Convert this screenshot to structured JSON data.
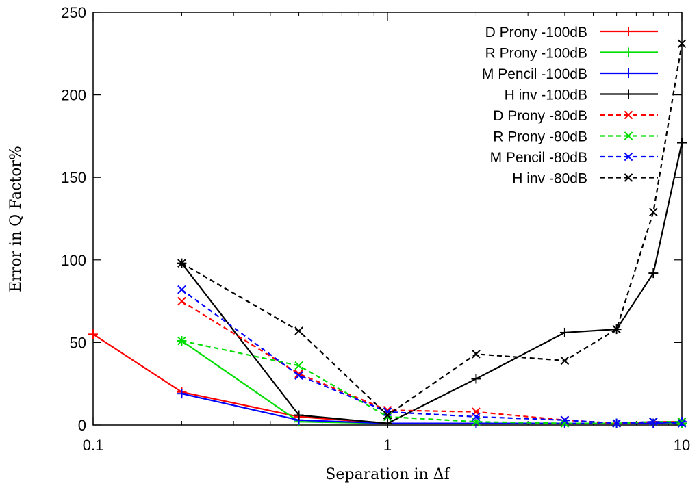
{
  "chart_data": {
    "type": "line",
    "xlabel": "Separation in Δf",
    "ylabel": "Error in Q Factor%",
    "xscale": "log",
    "xlim": [
      0.1,
      10
    ],
    "ylim": [
      0,
      250
    ],
    "xticks": [
      0.1,
      1,
      10
    ],
    "xtick_labels": [
      "0.1",
      "1",
      "10"
    ],
    "yticks": [
      0,
      50,
      100,
      150,
      200,
      250
    ],
    "ytick_labels": [
      "0",
      "50",
      "100",
      "150",
      "200",
      "250"
    ],
    "grid": false,
    "legend_position": "top-right",
    "series": [
      {
        "name": "D Prony -100dB",
        "color": "#ff0000",
        "dash": "solid",
        "marker": "plus",
        "x": [
          0.1,
          0.2,
          0.5,
          1,
          2,
          4,
          6,
          8,
          10
        ],
        "y": [
          55,
          20,
          5,
          1,
          1,
          1,
          1,
          1,
          1
        ]
      },
      {
        "name": "R Prony -100dB",
        "color": "#00dd00",
        "dash": "solid",
        "marker": "plus",
        "x": [
          0.2,
          0.5,
          1,
          2,
          4,
          6,
          8,
          10
        ],
        "y": [
          51,
          2,
          1,
          1,
          1,
          1,
          1,
          1
        ]
      },
      {
        "name": "M Pencil -100dB",
        "color": "#0000ff",
        "dash": "solid",
        "marker": "plus",
        "x": [
          0.2,
          0.5,
          1,
          2,
          4,
          6,
          8,
          10
        ],
        "y": [
          19,
          3,
          1,
          1,
          1,
          1,
          1,
          2
        ]
      },
      {
        "name": "H inv -100dB",
        "color": "#000000",
        "dash": "solid",
        "marker": "plus",
        "x": [
          0.2,
          0.5,
          1,
          2,
          4,
          6,
          8,
          10
        ],
        "y": [
          98,
          6,
          1,
          28,
          56,
          58,
          92,
          171
        ]
      },
      {
        "name": "D Prony -80dB",
        "color": "#ff0000",
        "dash": "dashed",
        "marker": "cross",
        "x": [
          0.2,
          0.5,
          1,
          2,
          4,
          6,
          8,
          10
        ],
        "y": [
          75,
          31,
          9,
          8,
          3,
          1,
          2,
          2
        ]
      },
      {
        "name": "R Prony -80dB",
        "color": "#00dd00",
        "dash": "dashed",
        "marker": "cross",
        "x": [
          0.2,
          0.5,
          1,
          2,
          4,
          6,
          8,
          10
        ],
        "y": [
          51,
          36,
          5,
          2,
          1,
          1,
          2,
          2
        ]
      },
      {
        "name": "M Pencil -80dB",
        "color": "#0000ff",
        "dash": "dashed",
        "marker": "cross",
        "x": [
          0.2,
          0.5,
          1,
          2,
          4,
          6,
          8,
          10
        ],
        "y": [
          82,
          30,
          8,
          5,
          3,
          1,
          2,
          1
        ]
      },
      {
        "name": "H inv -80dB",
        "color": "#000000",
        "dash": "dashed",
        "marker": "cross",
        "x": [
          0.2,
          0.5,
          1,
          2,
          4,
          6,
          8,
          10
        ],
        "y": [
          98,
          57,
          6,
          43,
          39,
          58,
          129,
          231
        ]
      }
    ]
  }
}
